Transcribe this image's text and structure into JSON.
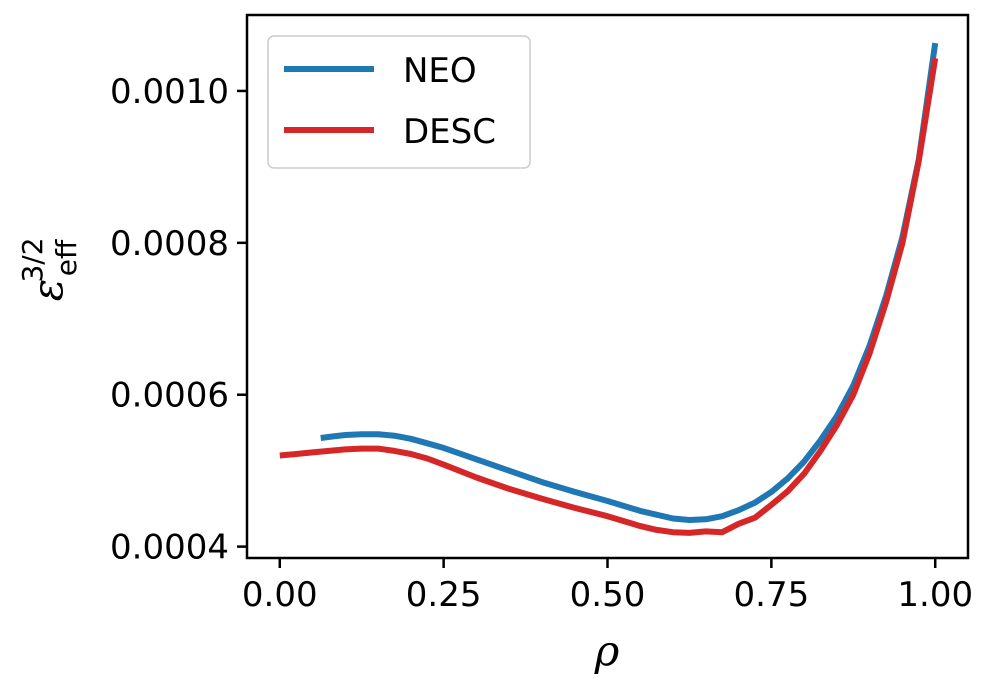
{
  "chart_data": {
    "type": "line",
    "title": "",
    "xlabel": "ρ",
    "ylabel": {
      "base": "ε",
      "sub": "eff",
      "sup": "3/2"
    },
    "xlim": [
      -0.05,
      1.05
    ],
    "ylim": [
      0.000385,
      0.0011
    ],
    "xticks": [
      0.0,
      0.25,
      0.5,
      0.75,
      1.0
    ],
    "xtick_labels": [
      "0.00",
      "0.25",
      "0.50",
      "0.75",
      "1.00"
    ],
    "yticks": [
      0.0004,
      0.0006,
      0.0008,
      0.001
    ],
    "ytick_labels": [
      "0.0004",
      "0.0006",
      "0.0008",
      "0.0010"
    ],
    "grid": false,
    "legend_position": "upper-left",
    "series": [
      {
        "name": "NEO",
        "color": "#1f77b4",
        "x": [
          0.0625,
          0.08,
          0.1,
          0.125,
          0.15,
          0.175,
          0.2,
          0.225,
          0.25,
          0.3,
          0.35,
          0.4,
          0.45,
          0.5,
          0.55,
          0.6,
          0.625,
          0.65,
          0.675,
          0.7,
          0.725,
          0.75,
          0.775,
          0.8,
          0.825,
          0.85,
          0.875,
          0.9,
          0.925,
          0.95,
          0.975,
          1.0
        ],
        "y": [
          0.000543,
          0.000545,
          0.000547,
          0.000548,
          0.000548,
          0.000546,
          0.000542,
          0.000536,
          0.00053,
          0.000515,
          0.0005,
          0.000485,
          0.000472,
          0.00046,
          0.000447,
          0.000437,
          0.000435,
          0.000436,
          0.00044,
          0.000448,
          0.000458,
          0.000472,
          0.00049,
          0.000512,
          0.00054,
          0.000572,
          0.000612,
          0.000665,
          0.00073,
          0.000808,
          0.00091,
          0.001063
        ]
      },
      {
        "name": "DESC",
        "color": "#d62728",
        "x": [
          0.0,
          0.025,
          0.05,
          0.075,
          0.1,
          0.125,
          0.15,
          0.175,
          0.2,
          0.225,
          0.25,
          0.3,
          0.35,
          0.4,
          0.45,
          0.5,
          0.55,
          0.575,
          0.6,
          0.625,
          0.65,
          0.675,
          0.7,
          0.725,
          0.75,
          0.775,
          0.8,
          0.825,
          0.85,
          0.875,
          0.9,
          0.925,
          0.95,
          0.975,
          1.0
        ],
        "y": [
          0.00052,
          0.000522,
          0.000524,
          0.000526,
          0.000528,
          0.000529,
          0.000529,
          0.000526,
          0.000522,
          0.000516,
          0.000508,
          0.000491,
          0.000476,
          0.000463,
          0.000451,
          0.00044,
          0.000427,
          0.000422,
          0.000419,
          0.000418,
          0.00042,
          0.000419,
          0.00043,
          0.000438,
          0.000455,
          0.000473,
          0.000496,
          0.000526,
          0.00056,
          0.0006,
          0.000655,
          0.000722,
          0.0008,
          0.000908,
          0.001043
        ]
      }
    ]
  }
}
